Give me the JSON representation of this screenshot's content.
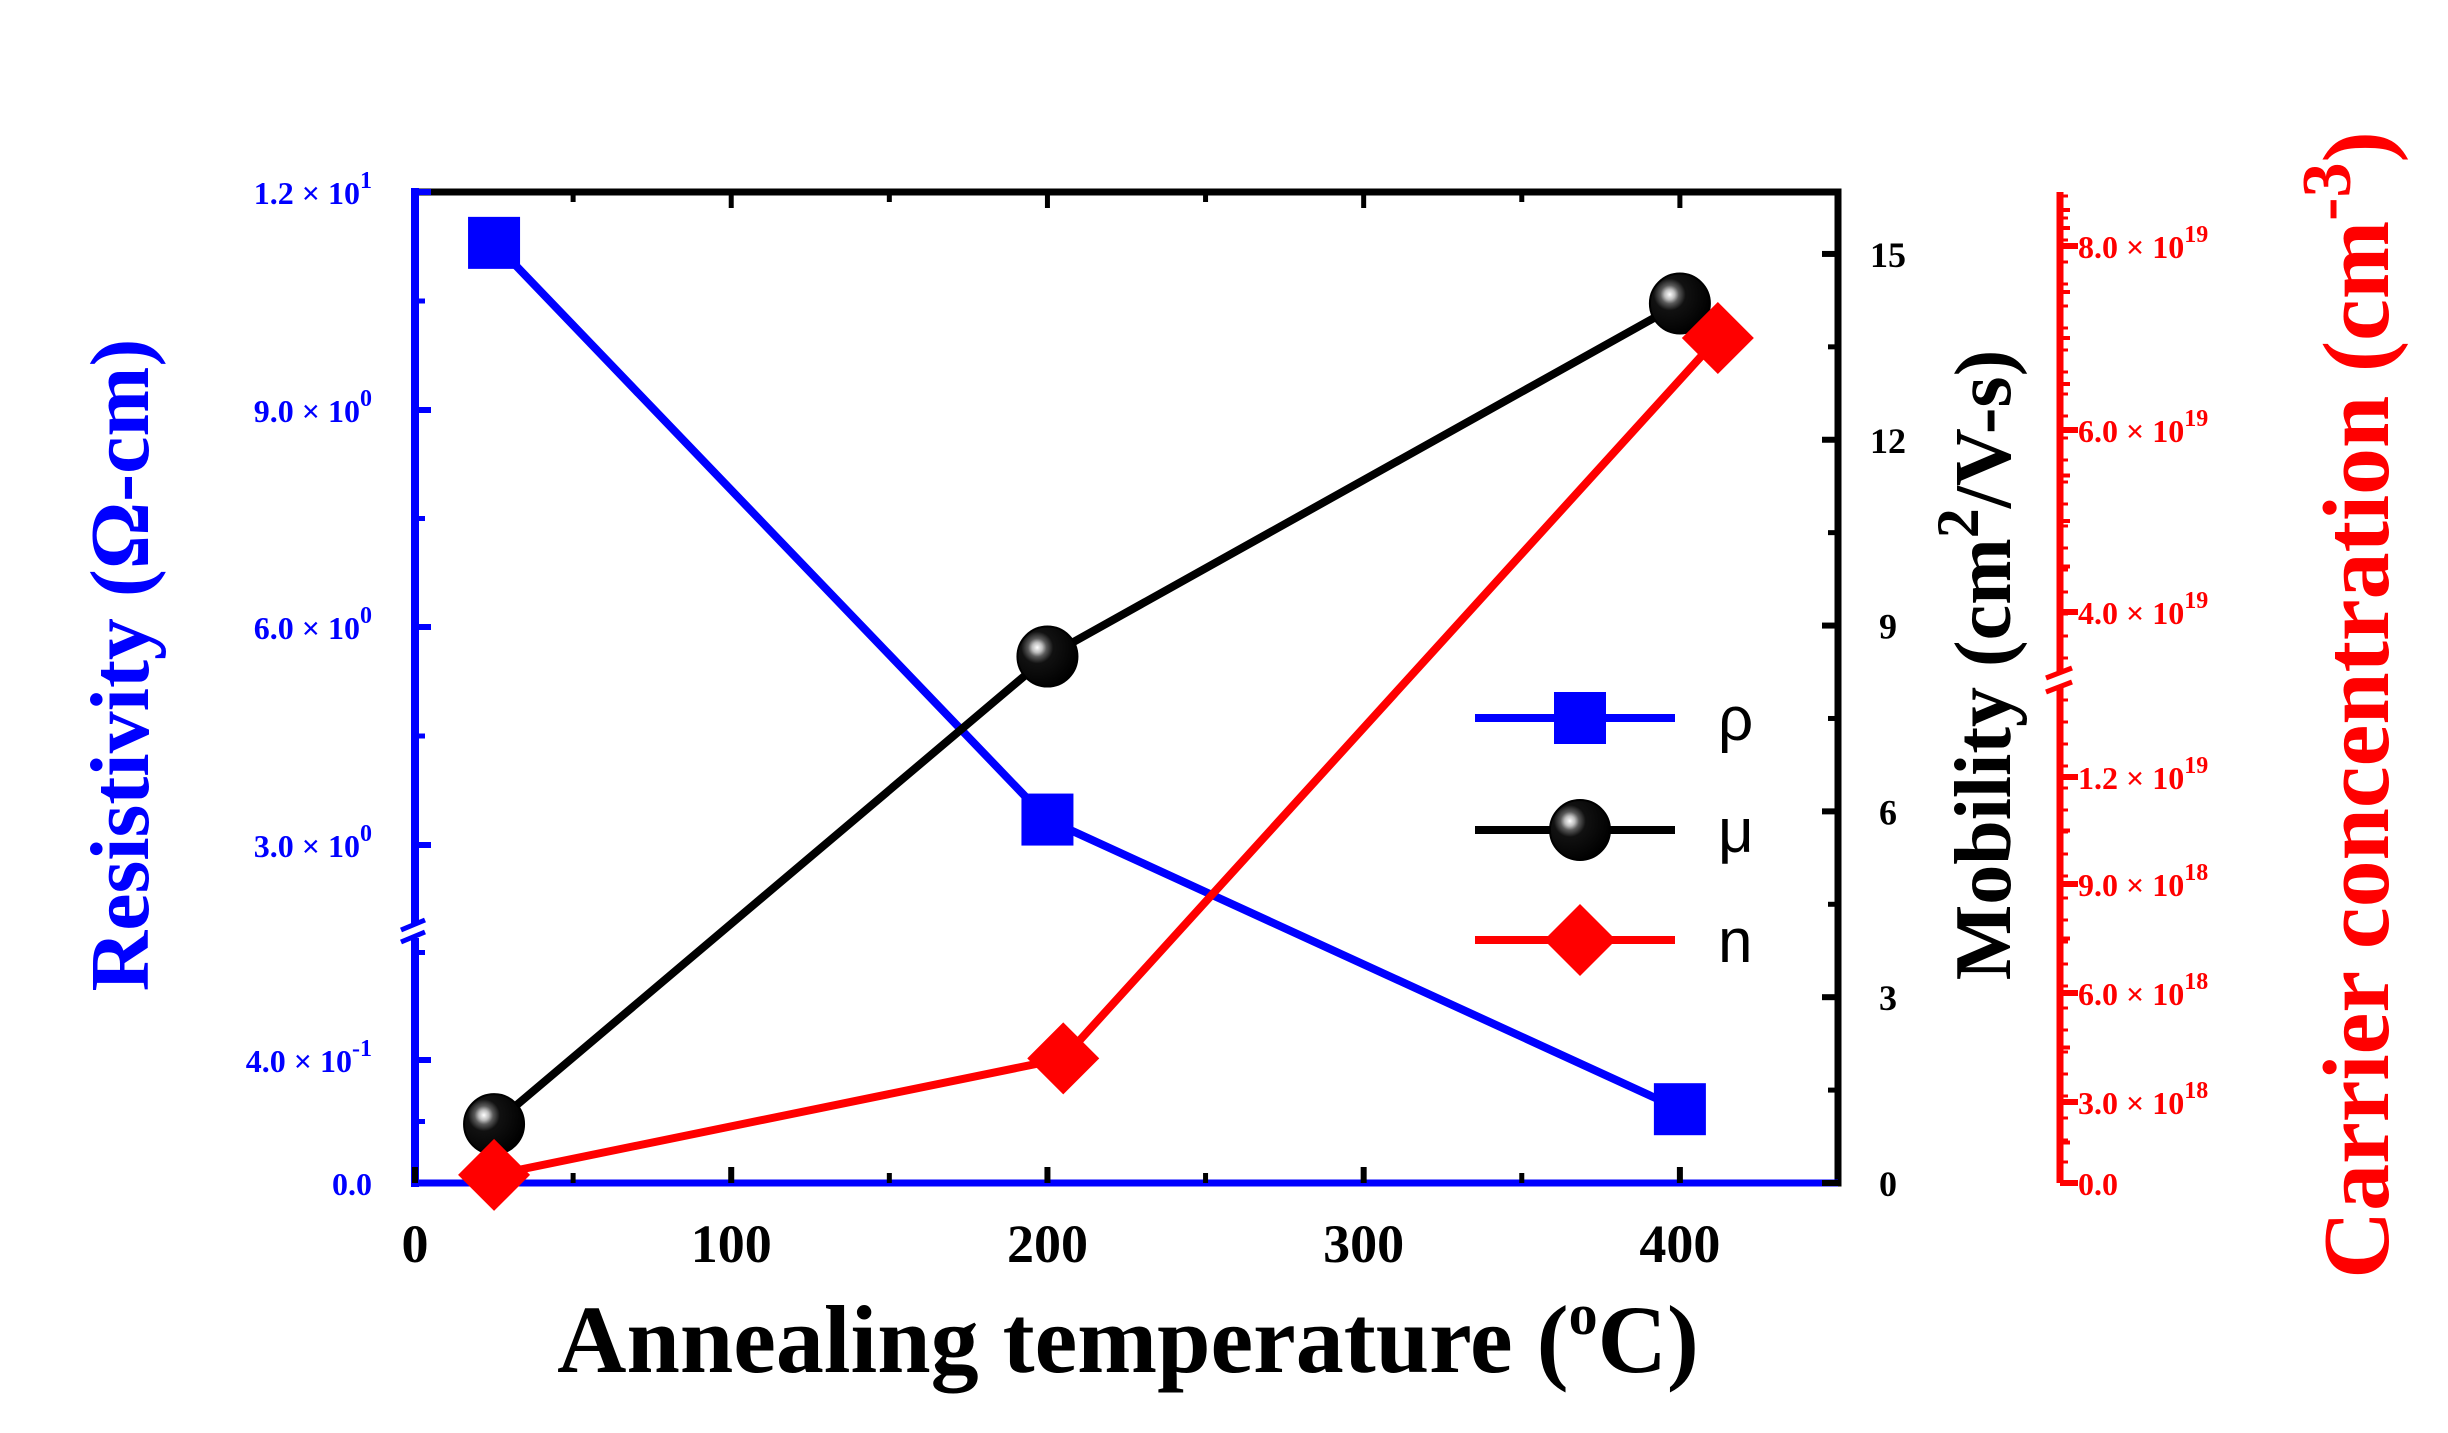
{
  "chart_data": {
    "type": "line",
    "xlabel": "Annealing temperature (",
    "xlabel_sup": "o",
    "xlabel_end": "C)",
    "xlim": [
      0,
      450
    ],
    "x_ticks": [
      0,
      100,
      200,
      300,
      400
    ],
    "x_tick_labels": [
      "0",
      "100",
      "200",
      "300",
      "400"
    ],
    "left_axis": {
      "label": "Resistivity (Ω-cm)",
      "color": "#0000ff",
      "break_between": [
        0.4,
        3.0
      ],
      "tick_labels": [
        {
          "mant": "0.0",
          "exp": ""
        },
        {
          "mant": "4.0 × 10",
          "exp": "-1"
        },
        {
          "mant": "3.0 × 10",
          "exp": "0"
        },
        {
          "mant": "6.0 × 10",
          "exp": "0"
        },
        {
          "mant": "9.0 × 10",
          "exp": "0"
        },
        {
          "mant": "1.2 × 10",
          "exp": "1"
        }
      ],
      "tick_values": [
        0,
        0.4,
        3.0,
        6.0,
        9.0,
        12.0
      ]
    },
    "right_axis_1": {
      "label_main": "Mobility (cm",
      "label_sup": "2",
      "label_end": "/V-s)",
      "color": "#000000",
      "ylim": [
        0,
        16
      ],
      "ticks": [
        0,
        3,
        6,
        9,
        12,
        15
      ],
      "tick_labels": [
        "0",
        "3",
        "6",
        "9",
        "12",
        "15"
      ]
    },
    "right_axis_2": {
      "label_main": "Carrier concentration (cm",
      "label_sup": "-3",
      "label_end": ")",
      "color": "#ff0000",
      "break_between": [
        1.2e+19,
        3.5e+19
      ],
      "tick_labels": [
        {
          "mant": "0.0",
          "exp": ""
        },
        {
          "mant": "3.0 × 10",
          "exp": "18"
        },
        {
          "mant": "6.0 × 10",
          "exp": "18"
        },
        {
          "mant": "9.0 × 10",
          "exp": "18"
        },
        {
          "mant": "1.2 × 10",
          "exp": "19"
        },
        {
          "mant": "4.0 × 10",
          "exp": "19"
        },
        {
          "mant": "6.0 × 10",
          "exp": "19"
        },
        {
          "mant": "8.0 × 10",
          "exp": "19"
        }
      ],
      "tick_values": [
        0,
        3e+18,
        6e+18,
        9e+18,
        1.2e+19,
        4e+19,
        6e+19,
        8e+19
      ]
    },
    "series": [
      {
        "name": "ρ",
        "axis": "left",
        "color": "#0000ff",
        "marker": "square",
        "x": [
          25,
          200,
          400
        ],
        "y": [
          11.3,
          3.35,
          0.24
        ]
      },
      {
        "name": "μ",
        "axis": "right1",
        "color": "#000000",
        "marker": "sphere",
        "x": [
          25,
          200,
          400
        ],
        "y": [
          0.95,
          8.5,
          14.2
        ]
      },
      {
        "name": "n",
        "axis": "right2",
        "color": "#ff0000",
        "marker": "diamond",
        "x": [
          25,
          205,
          412
        ],
        "y": [
          3e+17,
          4.2e+18,
          7e+19
        ]
      }
    ],
    "legend_position": "center-right"
  }
}
